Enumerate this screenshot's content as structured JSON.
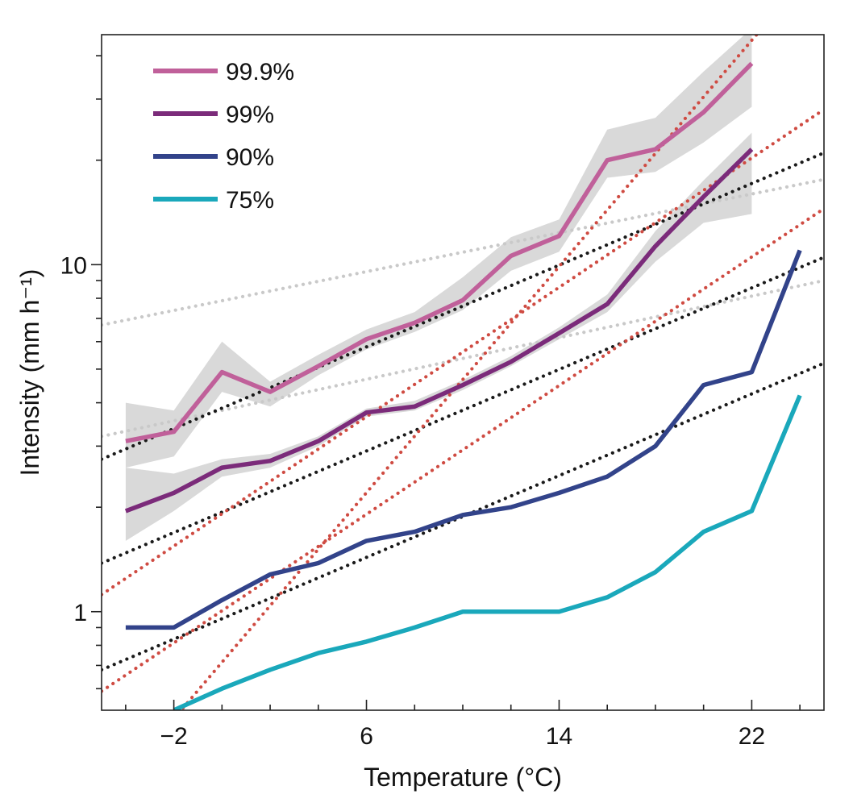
{
  "chart_data": {
    "type": "line",
    "title": "",
    "xlabel": "Temperature (°C)",
    "ylabel": "Intensity (mm h⁻¹)",
    "xlim": [
      -5,
      25
    ],
    "ylim": [
      0.52,
      46
    ],
    "yscale": "log",
    "grid": false,
    "legend_placement": "top-left",
    "x_ticks": [
      {
        "value": -2,
        "label": "−2"
      },
      {
        "value": 6,
        "label": "6"
      },
      {
        "value": 14,
        "label": "14"
      },
      {
        "value": 22,
        "label": "22"
      }
    ],
    "y_ticks": [
      {
        "value": 1,
        "label": "1"
      },
      {
        "value": 10,
        "label": "10"
      }
    ],
    "series": [
      {
        "name": "99.9%",
        "color": "#c0609a",
        "x": [
          -4,
          -2,
          0,
          2,
          4,
          6,
          8,
          10,
          12,
          14,
          16,
          18,
          20,
          22
        ],
        "values": [
          3.1,
          3.3,
          4.9,
          4.3,
          5.1,
          6.1,
          6.8,
          7.9,
          10.6,
          12.1,
          20,
          21.5,
          27.5,
          38
        ],
        "band_upper": [
          4.0,
          3.8,
          6.0,
          4.6,
          5.5,
          6.5,
          7.3,
          9.2,
          12.0,
          13.5,
          24.5,
          26.5,
          36,
          48
        ],
        "band_lower": [
          2.6,
          2.8,
          4.3,
          3.9,
          4.8,
          5.7,
          6.4,
          7.4,
          9.6,
          10.9,
          17.8,
          18.5,
          22.5,
          28.5
        ]
      },
      {
        "name": "99%",
        "color": "#7b2b7a",
        "x": [
          -4,
          -2,
          0,
          2,
          4,
          6,
          8,
          10,
          12,
          14,
          16,
          18,
          20,
          22
        ],
        "values": [
          1.95,
          2.2,
          2.6,
          2.72,
          3.1,
          3.75,
          3.9,
          4.5,
          5.25,
          6.35,
          7.7,
          11.3,
          15.7,
          21.5
        ],
        "band_upper": [
          2.6,
          2.5,
          2.75,
          2.85,
          3.2,
          3.85,
          4.05,
          4.65,
          5.45,
          6.6,
          8.2,
          12.5,
          17.5,
          24
        ],
        "band_lower": [
          1.6,
          1.95,
          2.45,
          2.6,
          3.0,
          3.65,
          3.8,
          4.35,
          5.1,
          6.1,
          7.3,
          10.2,
          13.2,
          14
        ]
      },
      {
        "name": "90%",
        "color": "#32438a",
        "x": [
          -4,
          -2,
          0,
          2,
          4,
          6,
          8,
          10,
          12,
          14,
          16,
          18,
          20,
          22,
          24
        ],
        "values": [
          0.9,
          0.9,
          1.08,
          1.28,
          1.38,
          1.6,
          1.7,
          1.9,
          2.0,
          2.2,
          2.45,
          3.0,
          4.5,
          4.9,
          11
        ]
      },
      {
        "name": "75%",
        "color": "#1aa8bb",
        "x": [
          -2,
          0,
          2,
          4,
          6,
          8,
          10,
          12,
          14,
          16,
          18,
          20,
          22,
          24
        ],
        "values": [
          0.52,
          0.6,
          0.68,
          0.76,
          0.82,
          0.9,
          1.0,
          1.0,
          1.0,
          1.1,
          1.3,
          1.7,
          1.95,
          4.2
        ]
      }
    ],
    "reference_lines": [
      {
        "style": "grey-dotted",
        "color": "#c9c9c9",
        "points": [
          [
            -5,
            6.7
          ],
          [
            25,
            17.6
          ]
        ]
      },
      {
        "style": "grey-dotted",
        "color": "#c9c9c9",
        "points": [
          [
            -5,
            3.2
          ],
          [
            25,
            9.0
          ]
        ]
      },
      {
        "style": "black-dotted",
        "color": "#1a1a1a",
        "points": [
          [
            -5,
            2.75
          ],
          [
            25,
            21
          ]
        ]
      },
      {
        "style": "black-dotted",
        "color": "#1a1a1a",
        "points": [
          [
            -5,
            1.38
          ],
          [
            25,
            10.5
          ]
        ]
      },
      {
        "style": "black-dotted",
        "color": "#1a1a1a",
        "points": [
          [
            -5,
            0.68
          ],
          [
            25,
            5.2
          ]
        ]
      },
      {
        "style": "red-dotted",
        "color": "#cf4b42",
        "points": [
          [
            -5,
            1.12
          ],
          [
            25,
            28
          ]
        ]
      },
      {
        "style": "red-dotted",
        "color": "#cf4b42",
        "points": [
          [
            -5,
            0.59
          ],
          [
            25,
            14.5
          ]
        ]
      },
      {
        "style": "red-dotted",
        "color": "#cf4b42",
        "points": [
          [
            -1.8,
            0.51
          ],
          [
            22.2,
            46
          ]
        ]
      }
    ]
  }
}
